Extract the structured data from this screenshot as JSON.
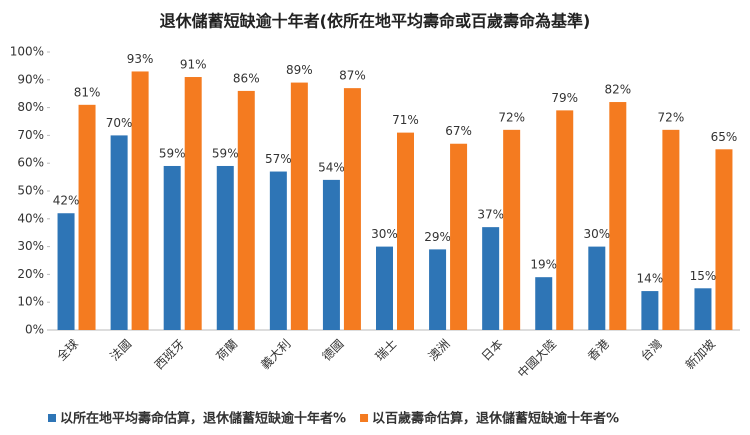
{
  "chart_data": {
    "type": "bar",
    "title": "退休儲蓄短缺逾十年者(依所在地平均壽命或百歲壽命為基準)",
    "categories": [
      "全球",
      "法國",
      "西班牙",
      "荷蘭",
      "義大利",
      "德國",
      "瑞士",
      "澳洲",
      "日本",
      "中國大陸",
      "香港",
      "台灣",
      "新加坡"
    ],
    "series": [
      {
        "name": "以所在地平均壽命估算，退休儲蓄短缺逾十年者%",
        "color": "#2e75b6",
        "values": [
          42,
          70,
          59,
          59,
          57,
          54,
          30,
          29,
          37,
          19,
          30,
          14,
          15
        ],
        "value_labels": [
          "42%",
          "70%",
          "59%",
          "59%",
          "57%",
          "54%",
          "30%",
          "29%",
          "37%",
          "19%",
          "30%",
          "14%",
          "15%"
        ]
      },
      {
        "name": "以百歲壽命估算，退休儲蓄短缺逾十年者%",
        "color": "#f47b20",
        "values": [
          81,
          93,
          91,
          86,
          89,
          87,
          71,
          67,
          72,
          79,
          82,
          72,
          65
        ],
        "value_labels": [
          "81%",
          "93%",
          "91%",
          "86%",
          "89%",
          "87%",
          "71%",
          "67%",
          "72%",
          "79%",
          "82%",
          "72%",
          "65%"
        ]
      }
    ],
    "ylim": [
      0,
      100
    ],
    "yticks": [
      {
        "value": 0,
        "label": "0%"
      },
      {
        "value": 10,
        "label": "10%"
      },
      {
        "value": 20,
        "label": "20%"
      },
      {
        "value": 30,
        "label": "30%"
      },
      {
        "value": 40,
        "label": "40%"
      },
      {
        "value": 50,
        "label": "50%"
      },
      {
        "value": 60,
        "label": "60%"
      },
      {
        "value": 70,
        "label": "70%"
      },
      {
        "value": 80,
        "label": "80%"
      },
      {
        "value": 90,
        "label": "90%"
      },
      {
        "value": 100,
        "label": "100%"
      }
    ],
    "legend": "bottom"
  }
}
